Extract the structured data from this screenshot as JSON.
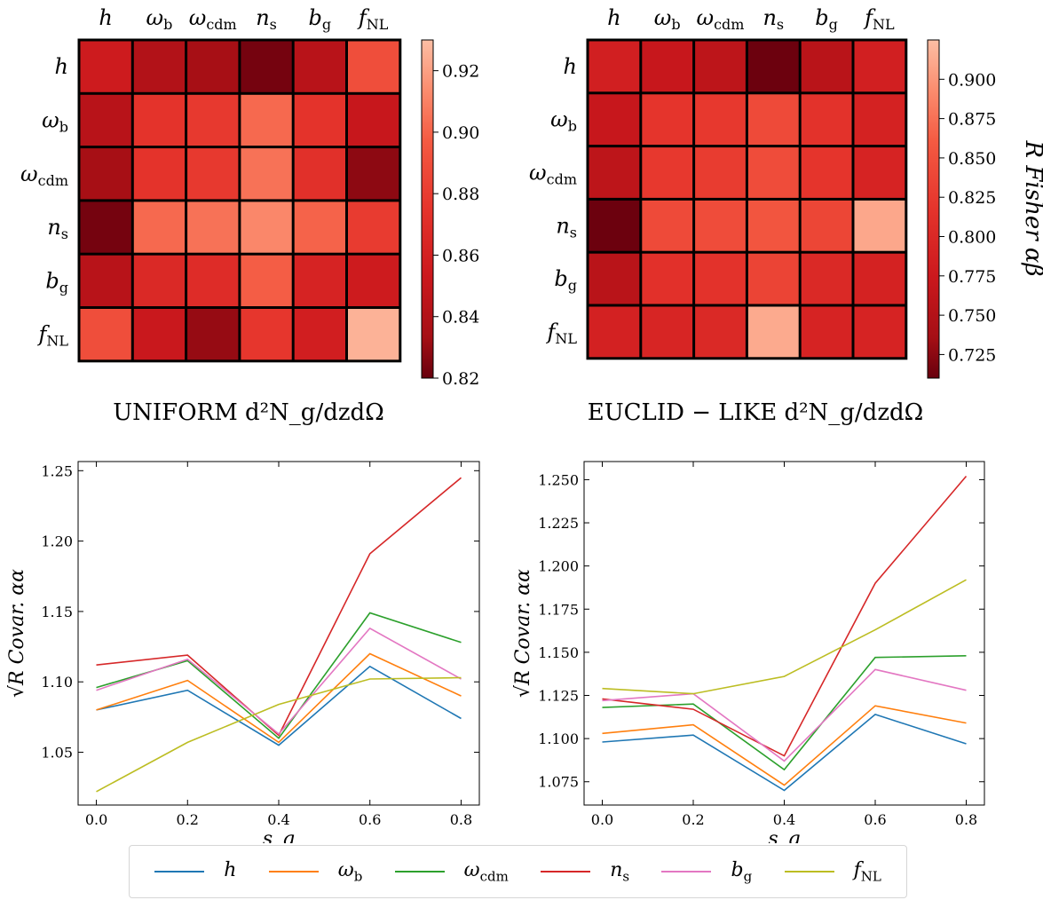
{
  "colors": {
    "h": "#1f77b4",
    "omega_b": "#ff7f0e",
    "omega_cdm": "#2ca02c",
    "n_s": "#d62728",
    "b_g": "#e377c2",
    "f_NL": "#bcbd22"
  },
  "chart_data": [
    {
      "type": "heatmap",
      "title": "UNIFORM d²N_g/dzdΩ",
      "row_labels": [
        "h",
        "ωb",
        "ωcdm",
        "ns",
        "bg",
        "fNL"
      ],
      "col_labels": [
        "h",
        "ωb",
        "ωcdm",
        "ns",
        "bg",
        "fNL"
      ],
      "values": [
        [
          0.855,
          0.84,
          0.834,
          0.823,
          0.843,
          0.89
        ],
        [
          0.843,
          0.874,
          0.878,
          0.902,
          0.874,
          0.851
        ],
        [
          0.834,
          0.874,
          0.878,
          0.905,
          0.872,
          0.828
        ],
        [
          0.823,
          0.902,
          0.905,
          0.912,
          0.9,
          0.879
        ],
        [
          0.843,
          0.866,
          0.869,
          0.898,
          0.862,
          0.855
        ],
        [
          0.89,
          0.852,
          0.83,
          0.876,
          0.858,
          0.926
        ]
      ],
      "colorbar": {
        "vmin": 0.82,
        "vmax": 0.93,
        "ticks": [
          "0.82",
          "0.84",
          "0.86",
          "0.88",
          "0.90",
          "0.92"
        ],
        "label": ""
      }
    },
    {
      "type": "heatmap",
      "title": "EUCLID − LIKE d²N_g/dzdΩ",
      "row_labels": [
        "h",
        "ωb",
        "ωcdm",
        "ns",
        "bg",
        "fNL"
      ],
      "col_labels": [
        "h",
        "ωb",
        "ωcdm",
        "ns",
        "bg",
        "fNL"
      ],
      "values": [
        [
          0.785,
          0.77,
          0.76,
          0.712,
          0.756,
          0.785
        ],
        [
          0.77,
          0.818,
          0.822,
          0.842,
          0.815,
          0.79
        ],
        [
          0.76,
          0.822,
          0.826,
          0.845,
          0.818,
          0.792
        ],
        [
          0.712,
          0.842,
          0.845,
          0.855,
          0.838,
          0.91
        ],
        [
          0.756,
          0.812,
          0.815,
          0.836,
          0.8,
          0.79
        ],
        [
          0.788,
          0.795,
          0.8,
          0.912,
          0.792,
          0.792
        ]
      ],
      "colorbar": {
        "vmin": 0.71,
        "vmax": 0.925,
        "ticks": [
          "0.725",
          "0.750",
          "0.775",
          "0.800",
          "0.825",
          "0.850",
          "0.875",
          "0.900"
        ],
        "label": "R Fisher αβ"
      }
    },
    {
      "type": "line",
      "xlabel": "s_g",
      "ylabel": "√R Covar. αα",
      "x": [
        0.0,
        0.2,
        0.4,
        0.6,
        0.8
      ],
      "xlim": [
        -0.04,
        0.84
      ],
      "ylim": [
        1.0125,
        1.2565
      ],
      "xticks": [
        "0.0",
        "0.2",
        "0.4",
        "0.6",
        "0.8"
      ],
      "yticks": [
        "1.05",
        "1.10",
        "1.15",
        "1.20",
        "1.25"
      ],
      "series": [
        {
          "name": "h",
          "values": [
            1.08,
            1.094,
            1.055,
            1.111,
            1.074
          ]
        },
        {
          "name": "ωb",
          "values": [
            1.08,
            1.101,
            1.057,
            1.12,
            1.09
          ]
        },
        {
          "name": "ωcdm",
          "values": [
            1.096,
            1.115,
            1.06,
            1.149,
            1.128
          ]
        },
        {
          "name": "ns",
          "values": [
            1.112,
            1.119,
            1.062,
            1.191,
            1.245
          ]
        },
        {
          "name": "bg",
          "values": [
            1.094,
            1.116,
            1.063,
            1.138,
            1.102
          ]
        },
        {
          "name": "fNL",
          "values": [
            1.022,
            1.057,
            1.084,
            1.102,
            1.103
          ]
        }
      ]
    },
    {
      "type": "line",
      "xlabel": "s_g",
      "ylabel": "√R Covar. αα",
      "x": [
        0.0,
        0.2,
        0.4,
        0.6,
        0.8
      ],
      "xlim": [
        -0.04,
        0.84
      ],
      "ylim": [
        1.0615,
        1.2605
      ],
      "xticks": [
        "0.0",
        "0.2",
        "0.4",
        "0.6",
        "0.8"
      ],
      "yticks": [
        "1.075",
        "1.100",
        "1.125",
        "1.150",
        "1.175",
        "1.200",
        "1.225",
        "1.250"
      ],
      "series": [
        {
          "name": "h",
          "values": [
            1.098,
            1.102,
            1.07,
            1.114,
            1.097
          ]
        },
        {
          "name": "ωb",
          "values": [
            1.103,
            1.108,
            1.073,
            1.119,
            1.109
          ]
        },
        {
          "name": "ωcdm",
          "values": [
            1.118,
            1.12,
            1.082,
            1.147,
            1.148
          ]
        },
        {
          "name": "ns",
          "values": [
            1.123,
            1.117,
            1.09,
            1.19,
            1.252
          ]
        },
        {
          "name": "bg",
          "values": [
            1.122,
            1.126,
            1.087,
            1.14,
            1.128
          ]
        },
        {
          "name": "fNL",
          "values": [
            1.129,
            1.126,
            1.136,
            1.163,
            1.192
          ]
        }
      ]
    }
  ],
  "legend": {
    "items": [
      {
        "key": "h",
        "main": "h",
        "sub": ""
      },
      {
        "key": "omega_b",
        "main": "ω",
        "sub": "b"
      },
      {
        "key": "omega_cdm",
        "main": "ω",
        "sub": "cdm"
      },
      {
        "key": "n_s",
        "main": "n",
        "sub": "s"
      },
      {
        "key": "b_g",
        "main": "b",
        "sub": "g"
      },
      {
        "key": "f_NL",
        "main": "f",
        "sub": "NL"
      }
    ]
  }
}
